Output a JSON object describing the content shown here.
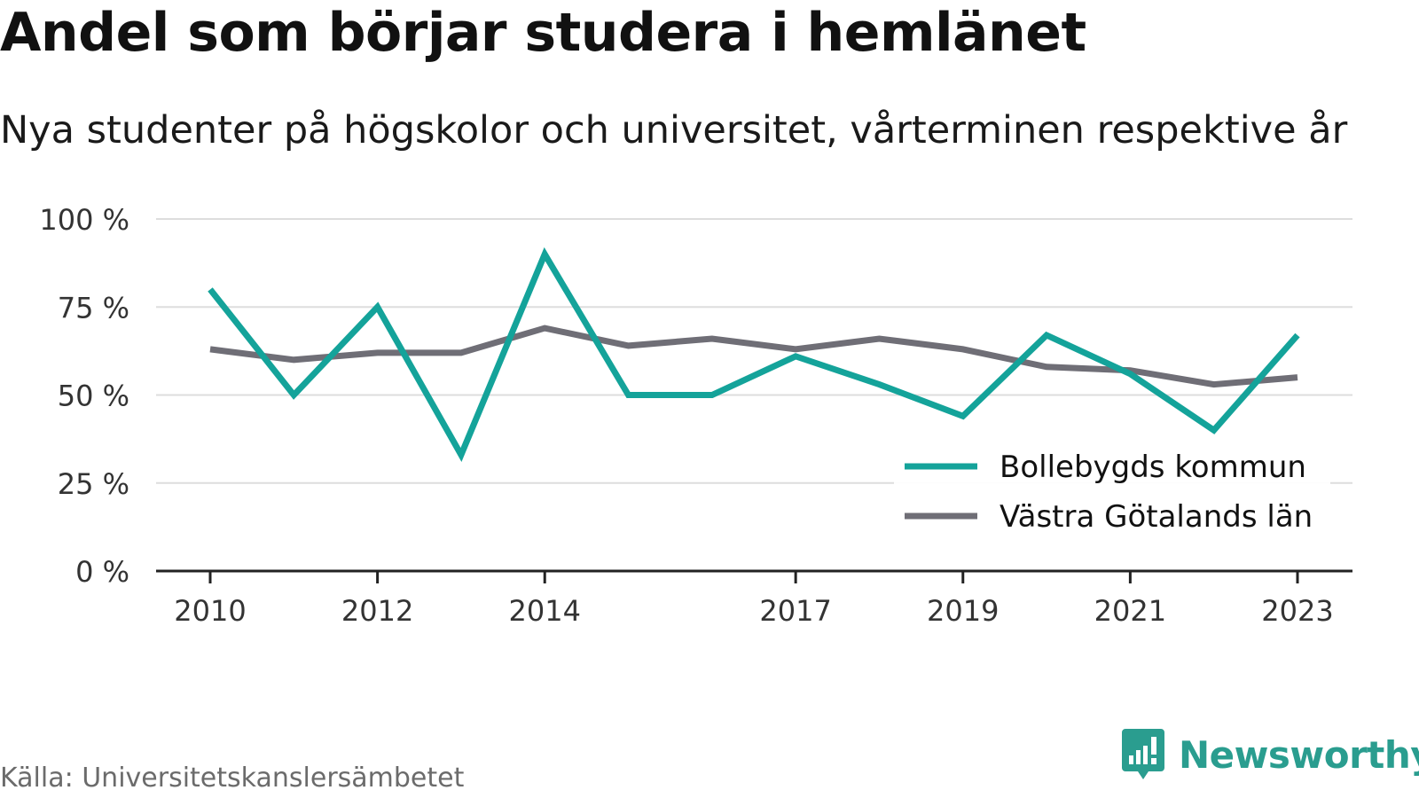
{
  "header": {
    "title": "Andel som börjar studera i hemlänet",
    "subtitle": "Nya studenter på högskolor och universitet, vårterminen respektive år"
  },
  "footer": {
    "source": "Källa: Universitetskanslersämbetet",
    "brand": "Newsworthy"
  },
  "colors": {
    "series_1": "#14a39a",
    "series_2": "#6f6e76",
    "grid": "#dddddd",
    "axis": "#222222",
    "brand": "#2a9d8f"
  },
  "chart_data": {
    "type": "line",
    "title": "Andel som börjar studera i hemlänet",
    "subtitle": "Nya studenter på högskolor och universitet, vårterminen respektive år",
    "x": [
      2010,
      2011,
      2012,
      2013,
      2014,
      2015,
      2016,
      2017,
      2018,
      2019,
      2020,
      2021,
      2022,
      2023
    ],
    "x_tick_labels": [
      "2010",
      "2012",
      "2014",
      "2017",
      "2019",
      "2021",
      "2023"
    ],
    "y_ticks": [
      0,
      25,
      50,
      75,
      100
    ],
    "y_tick_labels": [
      "0 %",
      "25 %",
      "50 %",
      "75 %",
      "100 %"
    ],
    "ylim": [
      0,
      100
    ],
    "grid": true,
    "legend_position": "bottom-right",
    "series": [
      {
        "name": "Bollebygds kommun",
        "values": [
          80,
          50,
          75,
          33,
          90,
          50,
          50,
          61,
          53,
          44,
          67,
          56,
          40,
          67
        ]
      },
      {
        "name": "Västra Götalands län",
        "values": [
          63,
          60,
          62,
          62,
          69,
          64,
          66,
          63,
          66,
          63,
          58,
          57,
          53,
          55
        ]
      }
    ]
  }
}
